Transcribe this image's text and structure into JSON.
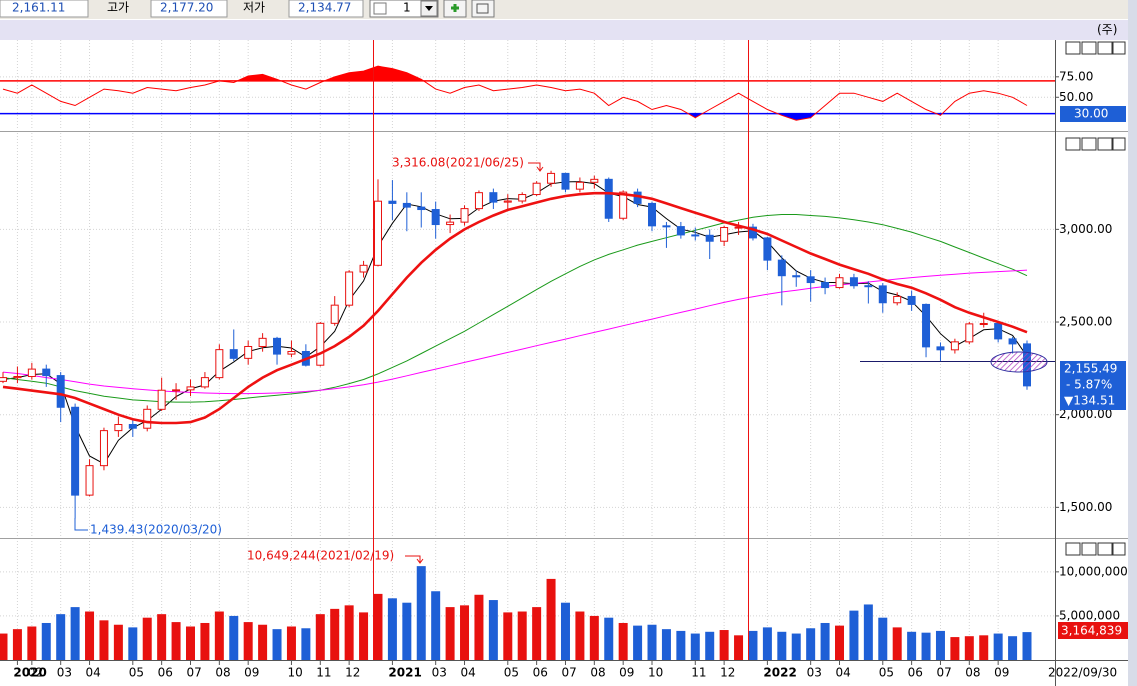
{
  "toolbar": {
    "open": "2,161.11",
    "high_label": "고가",
    "high": "2,177.20",
    "low_label": "저가",
    "low": "2,134.77",
    "period": "1"
  },
  "header": {
    "corner": "(주)"
  },
  "chart_data": [
    {
      "type": "line",
      "color": "#ff0000",
      "upper_color": "#ff0000",
      "lower_color": "#0000ff",
      "ylim": [
        10,
        120
      ],
      "yticks": [
        {
          "value": 75,
          "label": "75.00"
        },
        {
          "value": 50,
          "label": "50.00"
        }
      ],
      "upper_line": 70,
      "lower_line": {
        "value": 30,
        "label": "30.00"
      },
      "values": [
        60,
        55,
        65,
        55,
        45,
        40,
        50,
        60,
        58,
        55,
        62,
        60,
        58,
        62,
        65,
        70,
        68,
        76,
        78,
        72,
        65,
        60,
        68,
        75,
        80,
        82,
        88,
        85,
        80,
        72,
        60,
        55,
        62,
        65,
        58,
        60,
        62,
        65,
        62,
        58,
        60,
        55,
        40,
        50,
        45,
        35,
        40,
        35,
        25,
        35,
        45,
        55,
        45,
        35,
        28,
        22,
        25,
        40,
        55,
        55,
        50,
        45,
        55,
        45,
        35,
        28,
        45,
        55,
        58,
        55,
        50,
        40
      ]
    },
    {
      "type": "candlestick",
      "up_color": "#e8110f",
      "down_color": "#1e5fd6",
      "ylim": [
        1340,
        3520
      ],
      "yticks": [
        {
          "value": 1500,
          "label": "1,500.00"
        },
        {
          "value": 2000,
          "label": "2,000.00"
        },
        {
          "value": 2500,
          "label": "2,500.00"
        },
        {
          "value": 3000,
          "label": "3,000.00"
        }
      ],
      "grid": true,
      "candles": [
        [
          2180,
          2230,
          2170,
          2200
        ],
        [
          2200,
          2260,
          2170,
          2206
        ],
        [
          2206,
          2280,
          2190,
          2246
        ],
        [
          2246,
          2270,
          2150,
          2211
        ],
        [
          2211,
          2230,
          1960,
          2040
        ],
        [
          2040,
          2060,
          1439.43,
          1566
        ],
        [
          1566,
          1760,
          1560,
          1725
        ],
        [
          1725,
          1930,
          1700,
          1914
        ],
        [
          1914,
          1990,
          1880,
          1947
        ],
        [
          1947,
          1980,
          1880,
          1927
        ],
        [
          1927,
          2050,
          1910,
          2029
        ],
        [
          2029,
          2200,
          2020,
          2132
        ],
        [
          2132,
          2170,
          2080,
          2134
        ],
        [
          2134,
          2190,
          2100,
          2150
        ],
        [
          2150,
          2230,
          2140,
          2200
        ],
        [
          2200,
          2380,
          2190,
          2351
        ],
        [
          2351,
          2460,
          2290,
          2304
        ],
        [
          2304,
          2400,
          2270,
          2368
        ],
        [
          2368,
          2440,
          2340,
          2412
        ],
        [
          2412,
          2420,
          2270,
          2327
        ],
        [
          2327,
          2400,
          2310,
          2341
        ],
        [
          2341,
          2380,
          2260,
          2267
        ],
        [
          2267,
          2500,
          2260,
          2493
        ],
        [
          2493,
          2640,
          2480,
          2591
        ],
        [
          2591,
          2780,
          2580,
          2770
        ],
        [
          2770,
          2830,
          2740,
          2806
        ],
        [
          2806,
          3270,
          2800,
          3152
        ],
        [
          3152,
          3266,
          3050,
          3140
        ],
        [
          3140,
          3200,
          2990,
          3120
        ],
        [
          3120,
          3200,
          3010,
          3107
        ],
        [
          3107,
          3150,
          2950,
          3026
        ],
        [
          3026,
          3080,
          2980,
          3039
        ],
        [
          3039,
          3130,
          3020,
          3112
        ],
        [
          3112,
          3210,
          3100,
          3198
        ],
        [
          3198,
          3220,
          3110,
          3147
        ],
        [
          3147,
          3190,
          3100,
          3153
        ],
        [
          3153,
          3200,
          3140,
          3188
        ],
        [
          3188,
          3260,
          3180,
          3249
        ],
        [
          3249,
          3316.08,
          3230,
          3302
        ],
        [
          3302,
          3305,
          3200,
          3217
        ],
        [
          3217,
          3280,
          3200,
          3254
        ],
        [
          3254,
          3290,
          3220,
          3270
        ],
        [
          3270,
          3280,
          3040,
          3060
        ],
        [
          3060,
          3210,
          3050,
          3201
        ],
        [
          3201,
          3220,
          3120,
          3140
        ],
        [
          3140,
          3150,
          2990,
          3019
        ],
        [
          3019,
          3040,
          2900,
          3015
        ],
        [
          3015,
          3040,
          2950,
          2970
        ],
        [
          2970,
          3010,
          2940,
          2968
        ],
        [
          2968,
          3000,
          2840,
          2936
        ],
        [
          2936,
          3020,
          2910,
          3010
        ],
        [
          3010,
          3040,
          2970,
          3012
        ],
        [
          3012,
          3030,
          2940,
          2954
        ],
        [
          2954,
          2960,
          2780,
          2834
        ],
        [
          2834,
          2860,
          2590,
          2750
        ],
        [
          2750,
          2780,
          2690,
          2744
        ],
        [
          2744,
          2780,
          2610,
          2713
        ],
        [
          2713,
          2740,
          2650,
          2686
        ],
        [
          2686,
          2760,
          2680,
          2739
        ],
        [
          2739,
          2760,
          2680,
          2696
        ],
        [
          2696,
          2720,
          2600,
          2695
        ],
        [
          2695,
          2710,
          2550,
          2604
        ],
        [
          2604,
          2660,
          2590,
          2638
        ],
        [
          2638,
          2670,
          2560,
          2595
        ],
        [
          2595,
          2600,
          2310,
          2366
        ],
        [
          2366,
          2390,
          2290,
          2350
        ],
        [
          2350,
          2410,
          2330,
          2393
        ],
        [
          2393,
          2500,
          2380,
          2490
        ],
        [
          2490,
          2550,
          2470,
          2492
        ],
        [
          2492,
          2500,
          2390,
          2409
        ],
        [
          2409,
          2420,
          2330,
          2382
        ],
        [
          2382,
          2400,
          2134.77,
          2155.49
        ]
      ],
      "series": [
        {
          "color": "#000000",
          "width": 1,
          "values": [
            2190,
            2200,
            2217,
            2221,
            2166,
            1939,
            1777,
            1735,
            1862,
            1929,
            1968,
            2029,
            2098,
            2139,
            2161,
            2234,
            2285,
            2341,
            2361,
            2369,
            2360,
            2312,
            2367,
            2450,
            2618,
            2722,
            2909,
            3033,
            3137,
            3122,
            3084,
            3057,
            3059,
            3116,
            3152,
            3166,
            3163,
            3197,
            3246,
            3256,
            3258,
            3247,
            3195,
            3177,
            3134,
            3120,
            3058,
            3001,
            2984,
            2958,
            2971,
            2986,
            2992,
            2933,
            2846,
            2776,
            2736,
            2714,
            2713,
            2707,
            2710,
            2665,
            2646,
            2612,
            2533,
            2437,
            2370,
            2411,
            2458,
            2464,
            2428,
            2315
          ]
        },
        {
          "color": "#ee1111",
          "width": 2.6,
          "values": [
            2150,
            2140,
            2130,
            2120,
            2110,
            2090,
            2060,
            2030,
            2000,
            1975,
            1960,
            1955,
            1955,
            1960,
            1985,
            2030,
            2090,
            2150,
            2200,
            2240,
            2270,
            2300,
            2330,
            2370,
            2420,
            2480,
            2560,
            2650,
            2740,
            2820,
            2890,
            2950,
            3000,
            3040,
            3075,
            3105,
            3125,
            3145,
            3165,
            3180,
            3190,
            3195,
            3195,
            3190,
            3180,
            3165,
            3140,
            3115,
            3090,
            3065,
            3040,
            3020,
            3000,
            2975,
            2940,
            2905,
            2870,
            2840,
            2810,
            2785,
            2760,
            2730,
            2705,
            2685,
            2655,
            2620,
            2580,
            2550,
            2525,
            2500,
            2475,
            2445
          ]
        },
        {
          "color": "#1a9a1a",
          "width": 1,
          "values": [
            2200,
            2190,
            2180,
            2170,
            2150,
            2130,
            2115,
            2100,
            2090,
            2080,
            2075,
            2070,
            2068,
            2068,
            2070,
            2075,
            2082,
            2090,
            2098,
            2105,
            2112,
            2120,
            2132,
            2148,
            2168,
            2190,
            2220,
            2255,
            2290,
            2330,
            2370,
            2410,
            2450,
            2495,
            2540,
            2585,
            2630,
            2675,
            2720,
            2760,
            2800,
            2835,
            2865,
            2890,
            2915,
            2935,
            2955,
            2975,
            2995,
            3015,
            3035,
            3050,
            3065,
            3075,
            3080,
            3080,
            3075,
            3070,
            3062,
            3052,
            3040,
            3025,
            3005,
            2985,
            2960,
            2935,
            2905,
            2875,
            2845,
            2815,
            2785,
            2750
          ]
        },
        {
          "color": "#ff00ff",
          "width": 1,
          "values": [
            2230,
            2222,
            2212,
            2200,
            2190,
            2178,
            2165,
            2155,
            2147,
            2140,
            2134,
            2128,
            2124,
            2120,
            2117,
            2115,
            2114,
            2114,
            2115,
            2117,
            2120,
            2125,
            2132,
            2140,
            2150,
            2162,
            2176,
            2192,
            2210,
            2228,
            2246,
            2264,
            2282,
            2300,
            2318,
            2336,
            2354,
            2372,
            2390,
            2408,
            2426,
            2444,
            2462,
            2480,
            2498,
            2516,
            2534,
            2552,
            2570,
            2588,
            2606,
            2622,
            2636,
            2650,
            2662,
            2672,
            2682,
            2692,
            2700,
            2708,
            2716,
            2724,
            2732,
            2740,
            2746,
            2752,
            2758,
            2764,
            2768,
            2772,
            2776,
            2780
          ]
        }
      ],
      "annotations": [
        "3,316.08(2021/06/25)",
        "1,439.43(2020/03/20)"
      ],
      "current": {
        "price": "2,155.49",
        "change_rate": "- 5.87%",
        "change": "▼134.51"
      }
    },
    {
      "type": "bar",
      "ylim": [
        0,
        13500000
      ],
      "yticks": [
        {
          "value": 5000000,
          "label": "5,000,000"
        },
        {
          "value": 10000000,
          "label": "10,000,000"
        }
      ],
      "values": [
        3000000,
        3500000,
        3800000,
        4200000,
        5200000,
        6000000,
        5500000,
        4500000,
        4000000,
        3700000,
        4800000,
        5200000,
        4300000,
        3800000,
        4200000,
        5500000,
        5000000,
        4300000,
        4000000,
        3500000,
        3800000,
        3600000,
        5200000,
        5800000,
        6200000,
        5400000,
        7500000,
        7000000,
        6500000,
        10649244,
        7800000,
        6000000,
        6200000,
        7400000,
        6800000,
        5400000,
        5500000,
        6000000,
        9200000,
        6500000,
        5500000,
        5000000,
        4800000,
        4200000,
        3900000,
        4000000,
        3500000,
        3300000,
        3000000,
        3200000,
        3400000,
        2800000,
        3300000,
        3700000,
        3200000,
        3000000,
        3600000,
        4200000,
        3900000,
        5600000,
        6300000,
        4800000,
        3700000,
        3200000,
        3100000,
        3300000,
        2600000,
        2700000,
        2800000,
        3000000,
        2700000,
        3164839
      ],
      "last_label": "3,164,839",
      "annotation": "10,649,244(2021/02/19)",
      "categories": [
        null,
        "2020",
        "02",
        null,
        "03",
        null,
        "04",
        null,
        null,
        "05",
        null,
        "06",
        null,
        "07",
        null,
        "08",
        null,
        "09",
        null,
        null,
        "10",
        null,
        "11",
        null,
        "12",
        null,
        null,
        "2021",
        null,
        null,
        "03",
        null,
        "04",
        null,
        null,
        "05",
        null,
        "06",
        null,
        "07",
        null,
        "08",
        null,
        "09",
        null,
        "10",
        null,
        null,
        "11",
        null,
        "12",
        null,
        null,
        "2022",
        null,
        null,
        "03",
        null,
        "04",
        null,
        null,
        "05",
        null,
        "06",
        null,
        "07",
        null,
        "08",
        null,
        "09",
        null,
        null
      ],
      "current_date": "2022/09/30"
    }
  ]
}
